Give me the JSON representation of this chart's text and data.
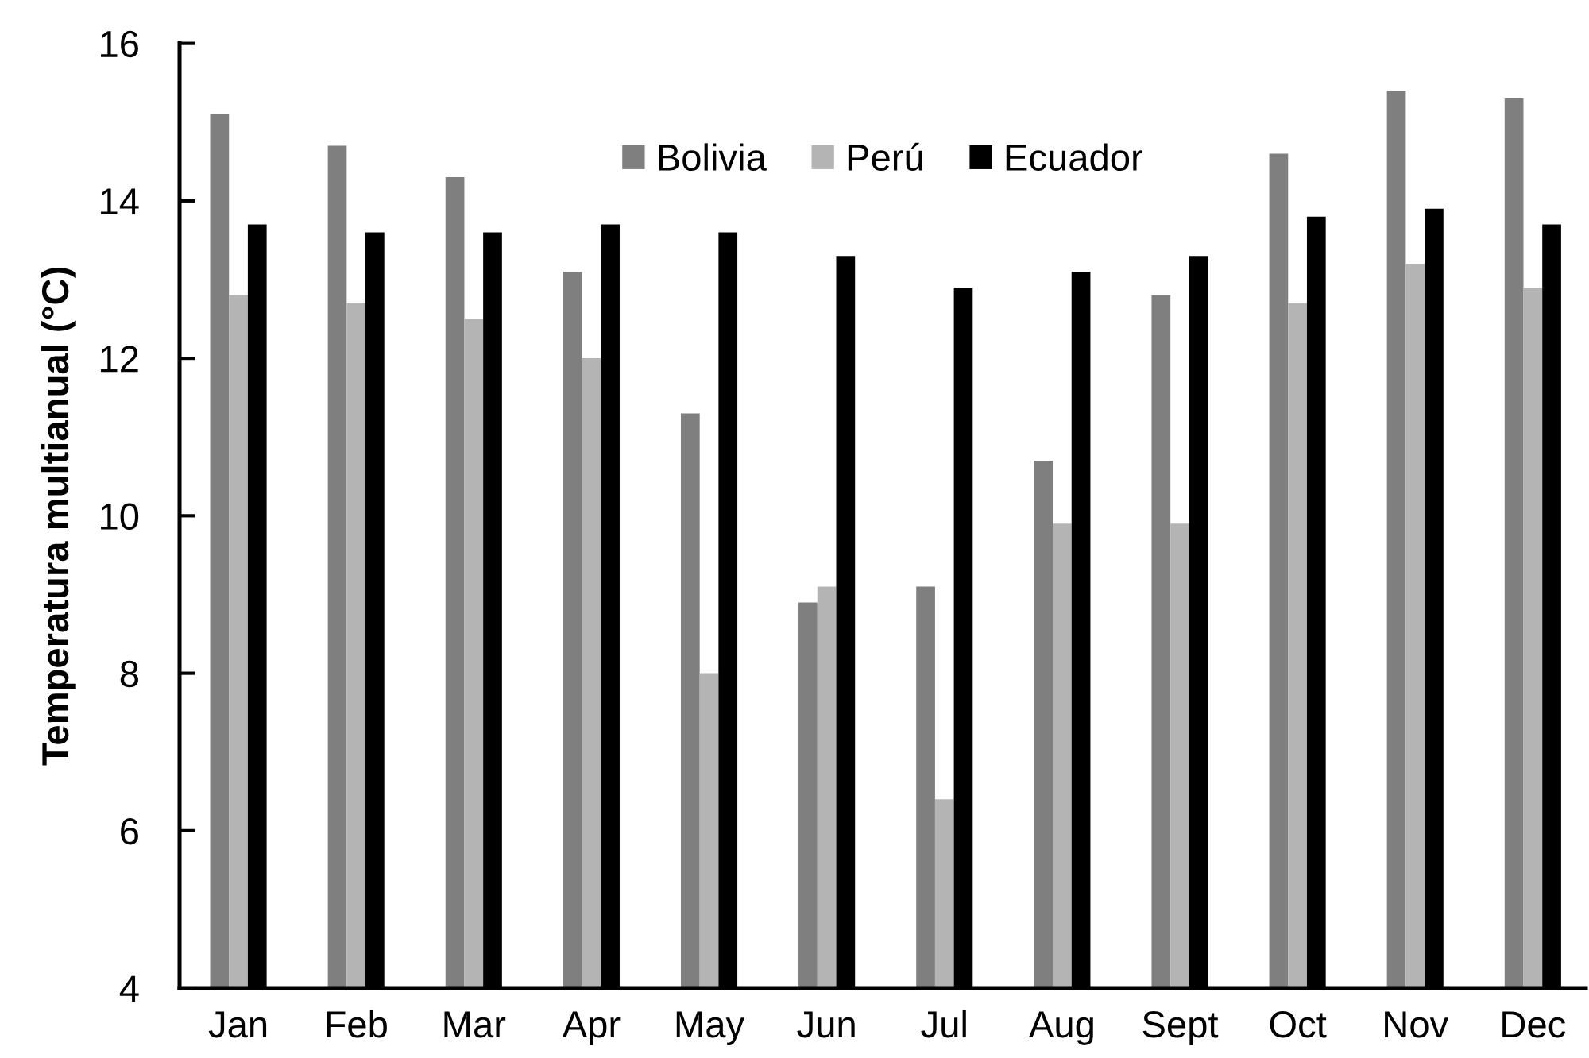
{
  "chart_data": {
    "type": "bar",
    "ylabel": "Temperatura multianual (°C)",
    "categories": [
      "Jan",
      "Feb",
      "Mar",
      "Apr",
      "May",
      "Jun",
      "Jul",
      "Aug",
      "Sept",
      "Oct",
      "Nov",
      "Dec"
    ],
    "series": [
      {
        "name": "Bolivia",
        "color": "#7f7f7f",
        "values": [
          15.1,
          14.7,
          14.3,
          13.1,
          11.3,
          8.9,
          9.1,
          10.7,
          12.8,
          14.6,
          15.4,
          15.3
        ]
      },
      {
        "name": "Perú",
        "color": "#b4b4b4",
        "values": [
          12.8,
          12.7,
          12.5,
          12.0,
          8.0,
          9.1,
          6.4,
          9.9,
          9.9,
          12.7,
          13.2,
          12.9
        ]
      },
      {
        "name": "Ecuador",
        "color": "#000000",
        "values": [
          13.7,
          13.6,
          13.6,
          13.7,
          13.6,
          13.3,
          12.9,
          13.1,
          13.3,
          13.8,
          13.9,
          13.7
        ]
      }
    ],
    "ylim": [
      4,
      16
    ],
    "yticks": [
      4,
      6,
      8,
      10,
      12,
      14,
      16
    ],
    "grid": false,
    "legend": "top"
  }
}
